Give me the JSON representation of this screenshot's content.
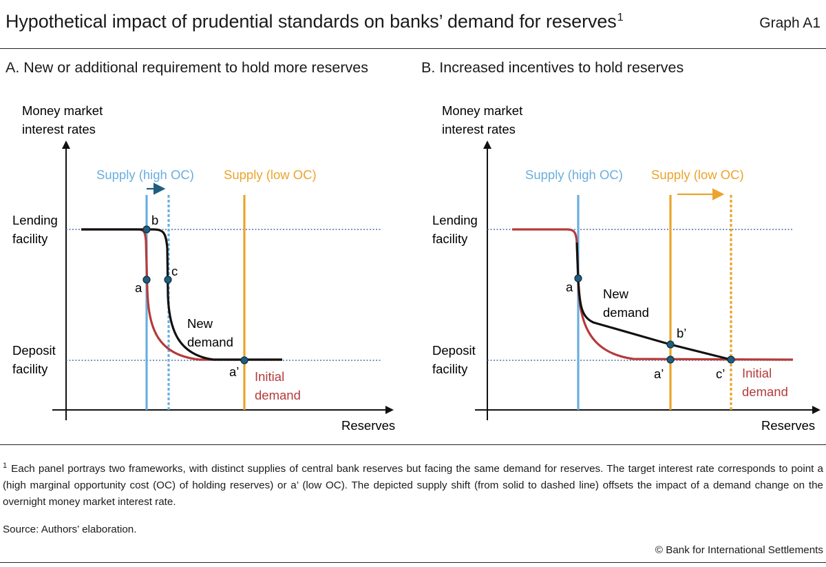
{
  "header": {
    "title": "Hypothetical impact of prudential standards on banks’ demand for reserves",
    "title_note": "1",
    "graph_id": "Graph A1"
  },
  "panels": [
    {
      "title": "A. New or additional requirement to hold more reserves",
      "y_axis_label_line1": "Money market",
      "y_axis_label_line2": "interest rates",
      "x_axis_label": "Reserves",
      "lending_label_line1": "Lending",
      "lending_label_line2": "facility",
      "deposit_label_line1": "Deposit",
      "deposit_label_line2": "facility",
      "supply_high_label": "Supply (high OC)",
      "supply_low_label": "Supply (low OC)",
      "new_demand_line1": "New",
      "new_demand_line2": "demand",
      "initial_demand_line1": "Initial",
      "initial_demand_line2": "demand",
      "points": {
        "a": "a",
        "b": "b",
        "c": "c",
        "a_prime": "a’"
      }
    },
    {
      "title": "B. Increased incentives to hold reserves",
      "y_axis_label_line1": "Money market",
      "y_axis_label_line2": "interest rates",
      "x_axis_label": "Reserves",
      "lending_label_line1": "Lending",
      "lending_label_line2": "facility",
      "deposit_label_line1": "Deposit",
      "deposit_label_line2": "facility",
      "supply_high_label": "Supply (high OC)",
      "supply_low_label": "Supply (low OC)",
      "new_demand_line1": "New",
      "new_demand_line2": "demand",
      "initial_demand_line1": "Initial",
      "initial_demand_line2": "demand",
      "points": {
        "a": "a",
        "b_prime": "b’",
        "a_prime": "a’",
        "c_prime": "c’"
      }
    }
  ],
  "footnote": {
    "marker": "1",
    "text": "Each panel portrays two frameworks, with distinct supplies of central bank reserves but facing the same demand for reserves. The target interest rate corresponds to point a (high marginal opportunity cost (OC) of holding reserves) or a’ (low OC). The depicted supply shift (from solid to dashed line) offsets the impact of a demand change on the overnight money market interest rate."
  },
  "source": "Source: Authors’ elaboration.",
  "copyright": "© Bank for International Settlements",
  "colors": {
    "supply_high": "#6aaede",
    "supply_low": "#eba42b",
    "initial_demand": "#b53a3a",
    "new_demand": "#111111",
    "facility_line": "#4a6fa5",
    "point_fill": "#1e5e7e"
  }
}
